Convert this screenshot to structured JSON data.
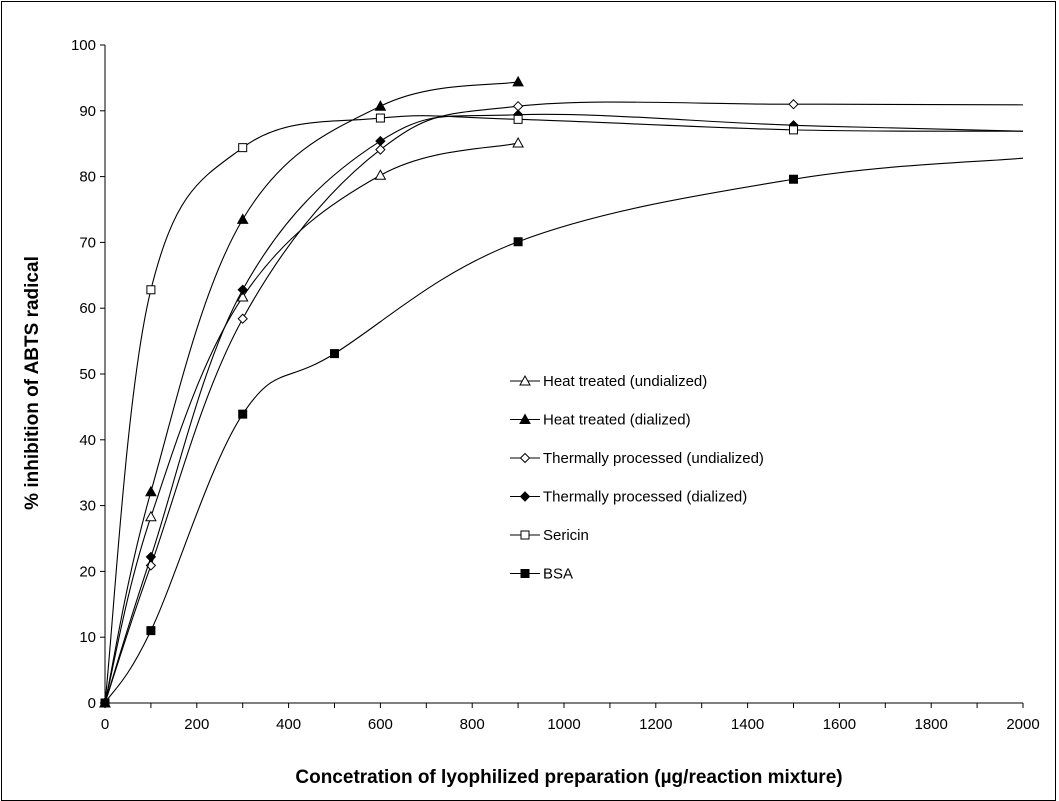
{
  "chart_data": {
    "type": "line",
    "title": "",
    "xlabel": "Concetration of lyophilized preparation (µg/reaction mixture)",
    "ylabel": "% inhibition of ABTS radical",
    "xlim": [
      0,
      2000
    ],
    "ylim": [
      0,
      100
    ],
    "x_ticks": [
      0,
      200,
      400,
      600,
      800,
      1000,
      1200,
      1400,
      1600,
      1800,
      2000
    ],
    "y_ticks": [
      0,
      10,
      20,
      30,
      40,
      50,
      60,
      70,
      80,
      90,
      100
    ],
    "grid": false,
    "legend_position": "center-right",
    "series": [
      {
        "name": "Heat treated (undialized)",
        "marker": "triangle-open",
        "x": [
          0,
          100,
          300,
          600,
          900
        ],
        "y": [
          0,
          28.3,
          61.7,
          80.2,
          85.1
        ]
      },
      {
        "name": "Heat treated (dialized)",
        "marker": "triangle-filled",
        "x": [
          0,
          100,
          300,
          600,
          900
        ],
        "y": [
          0,
          32.1,
          73.5,
          90.7,
          94.4
        ]
      },
      {
        "name": "Thermally processed (undialized)",
        "marker": "diamond-open",
        "x": [
          0,
          100,
          300,
          600,
          900,
          1500
        ],
        "y": [
          0,
          20.9,
          58.4,
          84.1,
          90.7,
          91.0
        ]
      },
      {
        "name": "Thermally processed (dialized)",
        "marker": "diamond-filled",
        "x": [
          0,
          100,
          300,
          600,
          900,
          1500
        ],
        "y": [
          0,
          22.2,
          62.8,
          85.4,
          89.4,
          87.8
        ]
      },
      {
        "name": "Sericin",
        "marker": "square-open",
        "x": [
          0,
          100,
          300,
          600,
          900,
          1500
        ],
        "y": [
          0,
          62.8,
          84.4,
          88.9,
          88.7,
          87.1
        ]
      },
      {
        "name": "BSA",
        "marker": "square-filled",
        "x": [
          0,
          100,
          300,
          500,
          900,
          1500
        ],
        "y": [
          0,
          11.0,
          43.9,
          53.1,
          70.1,
          79.6
        ]
      }
    ]
  }
}
